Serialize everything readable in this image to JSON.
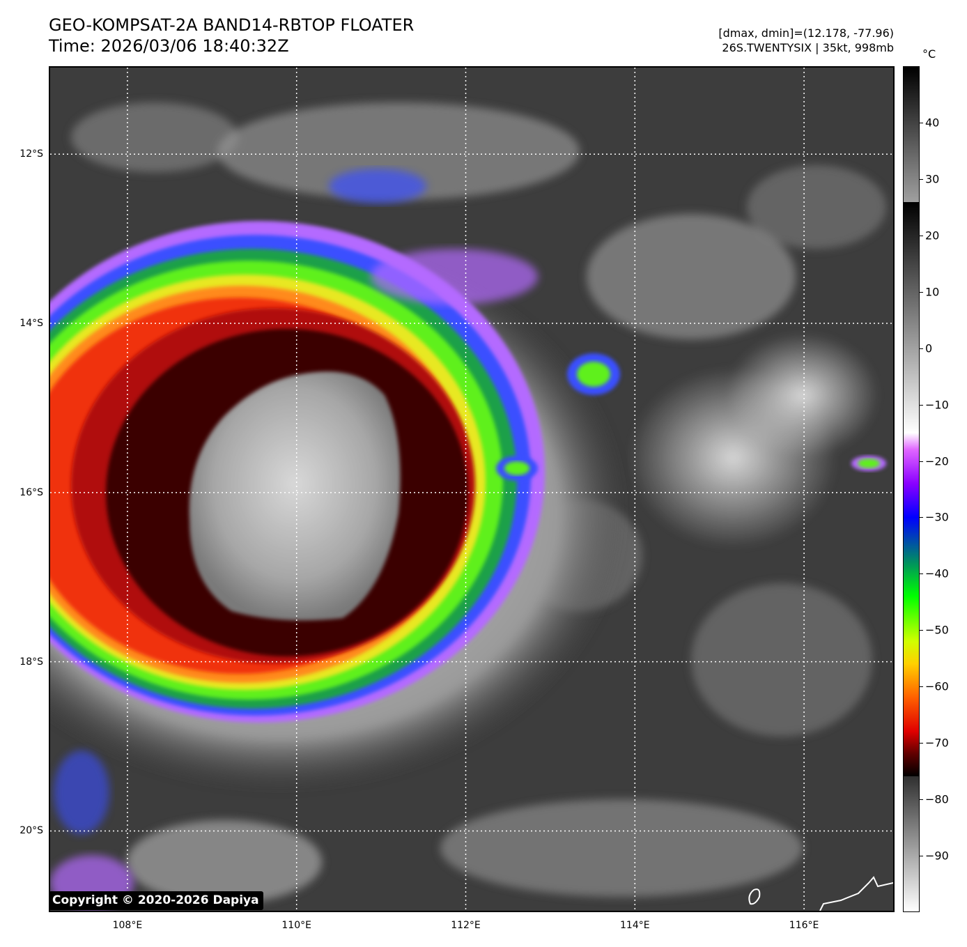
{
  "header": {
    "title": "GEO-KOMPSAT-2A BAND14-RBTOP FLOATER",
    "time": "Time: 2026/03/06 18:40:32Z",
    "range": "[dmax, dmin]=(12.178, -77.96)",
    "storm": "26S.TWENTYSIX | 35kt, 998mb"
  },
  "map": {
    "lon_range": [
      107.07,
      117.07
    ],
    "lat_range": [
      -20.96,
      -10.96
    ],
    "lat_labels": [
      {
        "value": -12,
        "text": "12°S"
      },
      {
        "value": -14,
        "text": "14°S"
      },
      {
        "value": -16,
        "text": "16°S"
      },
      {
        "value": -18,
        "text": "18°S"
      },
      {
        "value": -20,
        "text": "20°S"
      }
    ],
    "lon_labels": [
      {
        "value": 108,
        "text": "108°E"
      },
      {
        "value": 110,
        "text": "110°E"
      },
      {
        "value": 112,
        "text": "112°E"
      },
      {
        "value": 114,
        "text": "114°E"
      },
      {
        "value": 116,
        "text": "116°E"
      }
    ],
    "gridlines": true,
    "storm_center": {
      "lon": 110.5,
      "lat": -16.2
    }
  },
  "colorbar": {
    "unit": "°C",
    "range": [
      -100,
      50
    ],
    "ticks": [
      {
        "value": 40,
        "text": "40"
      },
      {
        "value": 30,
        "text": "30"
      },
      {
        "value": 20,
        "text": "20"
      },
      {
        "value": 10,
        "text": "10"
      },
      {
        "value": 0,
        "text": "0"
      },
      {
        "value": -10,
        "text": "−10"
      },
      {
        "value": -20,
        "text": "−20"
      },
      {
        "value": -30,
        "text": "−30"
      },
      {
        "value": -40,
        "text": "−40"
      },
      {
        "value": -50,
        "text": "−50"
      },
      {
        "value": -60,
        "text": "−60"
      },
      {
        "value": -70,
        "text": "−70"
      },
      {
        "value": -80,
        "text": "−80"
      },
      {
        "value": -90,
        "text": "−90"
      }
    ]
  },
  "copyright": "Copyright © 2020-2026 Dapiya"
}
